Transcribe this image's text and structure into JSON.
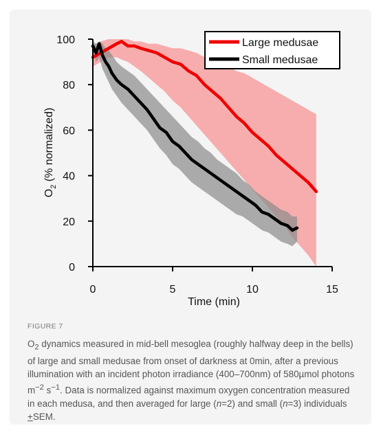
{
  "figure": {
    "label": "FIGURE 7",
    "caption_html": "O<sub>2</sub> dynamics measured in mid-bell mesoglea (roughly halfway deep in the bells) of large and small medusae from onset of darkness at 0min, after a previous illumination with an incident photon irradiance (400–700nm) of 580µmol photons m<sup>−2</sup> s<sup>−1</sup>. Data is normalized against maximum oxygen concentration measured in each medusa, and then averaged for large (<i>n</i>=2) and small (<i>n</i>=3) individuals <u>+</u>SEM."
  },
  "chart_data": {
    "type": "line",
    "title": "",
    "xlabel": "Time (min)",
    "ylabel_main": "O",
    "ylabel_sub": "2",
    "ylabel_rest": " (% normalized)",
    "xlim": [
      0,
      15
    ],
    "ylim": [
      0,
      100
    ],
    "xticks": [
      0,
      5,
      10,
      15
    ],
    "yticks": [
      0,
      20,
      40,
      60,
      80,
      100
    ],
    "grid": false,
    "legend_position": "top-right",
    "series": [
      {
        "name": "Large medusae",
        "color": "#ee0000",
        "band_color": "#f7a0a0",
        "x": [
          0,
          0.5,
          1,
          1.5,
          1.8,
          2.2,
          2.6,
          3,
          3.5,
          4,
          4.5,
          5,
          5.5,
          6,
          6.5,
          7,
          7.5,
          8,
          8.5,
          9,
          9.5,
          10,
          10.5,
          11,
          11.5,
          12,
          12.5,
          13,
          13.5,
          14
        ],
        "values": [
          92,
          94,
          96,
          98,
          99,
          97,
          97,
          96,
          95,
          94,
          92,
          90,
          89,
          86,
          84,
          80,
          77,
          74,
          70,
          66,
          63,
          59,
          56,
          53,
          49,
          46,
          43,
          40,
          37,
          33
        ],
        "upper": [
          97,
          99,
          100,
          100,
          100,
          100,
          99,
          99,
          98,
          98,
          97,
          96,
          96,
          95,
          94,
          92,
          91,
          90,
          88,
          86,
          85,
          83,
          81,
          79,
          77,
          75,
          73,
          71,
          69,
          67
        ],
        "lower": [
          88,
          90,
          92,
          92,
          91,
          90,
          88,
          86,
          83,
          80,
          77,
          73,
          70,
          66,
          62,
          58,
          54,
          50,
          46,
          42,
          38,
          34,
          30,
          26,
          22,
          18,
          13,
          9,
          5,
          0
        ]
      },
      {
        "name": "Small medusae",
        "color": "#000000",
        "band_color": "#8a8a8a",
        "x": [
          0,
          0.2,
          0.4,
          0.6,
          0.8,
          1,
          1.2,
          1.5,
          1.8,
          2.2,
          2.6,
          3,
          3.4,
          3.8,
          4.2,
          4.6,
          5,
          5.4,
          5.8,
          6.2,
          6.6,
          7,
          7.4,
          7.8,
          8.2,
          8.6,
          9,
          9.4,
          9.8,
          10.2,
          10.6,
          11,
          11.4,
          11.8,
          12.2,
          12.5,
          12.8
        ],
        "values": [
          97,
          94,
          98,
          93,
          90,
          88,
          85,
          82,
          80,
          78,
          75,
          72,
          69,
          65,
          61,
          59,
          55,
          53,
          50,
          47,
          45,
          43,
          41,
          39,
          37,
          35,
          33,
          31,
          29,
          27,
          24,
          23,
          21,
          19,
          18,
          16,
          17
        ],
        "upper": [
          99,
          98,
          99,
          98,
          96,
          95,
          93,
          90,
          88,
          86,
          84,
          81,
          78,
          75,
          72,
          69,
          66,
          63,
          60,
          57,
          55,
          52,
          50,
          47,
          45,
          43,
          41,
          38,
          36,
          33,
          31,
          29,
          27,
          25,
          24,
          22,
          22
        ],
        "lower": [
          95,
          90,
          92,
          87,
          84,
          81,
          78,
          75,
          72,
          69,
          66,
          63,
          60,
          56,
          52,
          49,
          45,
          43,
          40,
          37,
          35,
          33,
          31,
          29,
          27,
          25,
          23,
          22,
          20,
          18,
          16,
          15,
          13,
          11,
          10,
          9,
          11
        ]
      }
    ]
  }
}
